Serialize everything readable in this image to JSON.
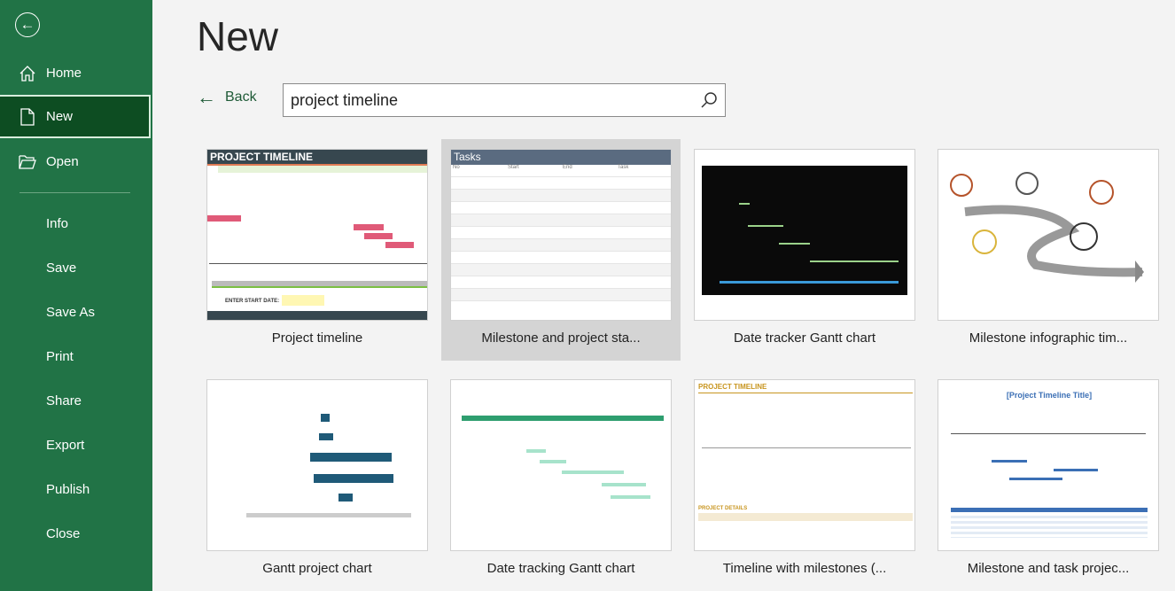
{
  "sidebar": {
    "items": [
      {
        "label": "Home",
        "icon": "home-icon"
      },
      {
        "label": "New",
        "icon": "new-document-icon",
        "selected": true
      },
      {
        "label": "Open",
        "icon": "folder-open-icon"
      },
      {
        "label": "Info"
      },
      {
        "label": "Save"
      },
      {
        "label": "Save As"
      },
      {
        "label": "Print"
      },
      {
        "label": "Share"
      },
      {
        "label": "Export"
      },
      {
        "label": "Publish"
      },
      {
        "label": "Close"
      }
    ]
  },
  "page": {
    "title": "New",
    "back_label": "Back"
  },
  "search": {
    "value": "project timeline"
  },
  "templates": [
    {
      "label": "Project timeline",
      "thumb_title": "PROJECT TIMELINE",
      "thumb_field": "ENTER START DATE:"
    },
    {
      "label": "Milestone and project sta...",
      "thumb_title": "Tasks",
      "selected": true
    },
    {
      "label": "Date tracker Gantt chart"
    },
    {
      "label": "Milestone infographic tim..."
    },
    {
      "label": "Gantt project chart"
    },
    {
      "label": "Date tracking Gantt chart"
    },
    {
      "label": "Timeline with milestones (...",
      "thumb_title": "PROJECT TIMELINE",
      "thumb_sub": "PROJECT DETAILS"
    },
    {
      "label": "Milestone and task projec...",
      "thumb_title": "[Project Timeline Title]"
    }
  ],
  "colors": {
    "sidebar": "#217346",
    "selected_nav": "#0d4d22",
    "background": "#f3f3f3"
  }
}
